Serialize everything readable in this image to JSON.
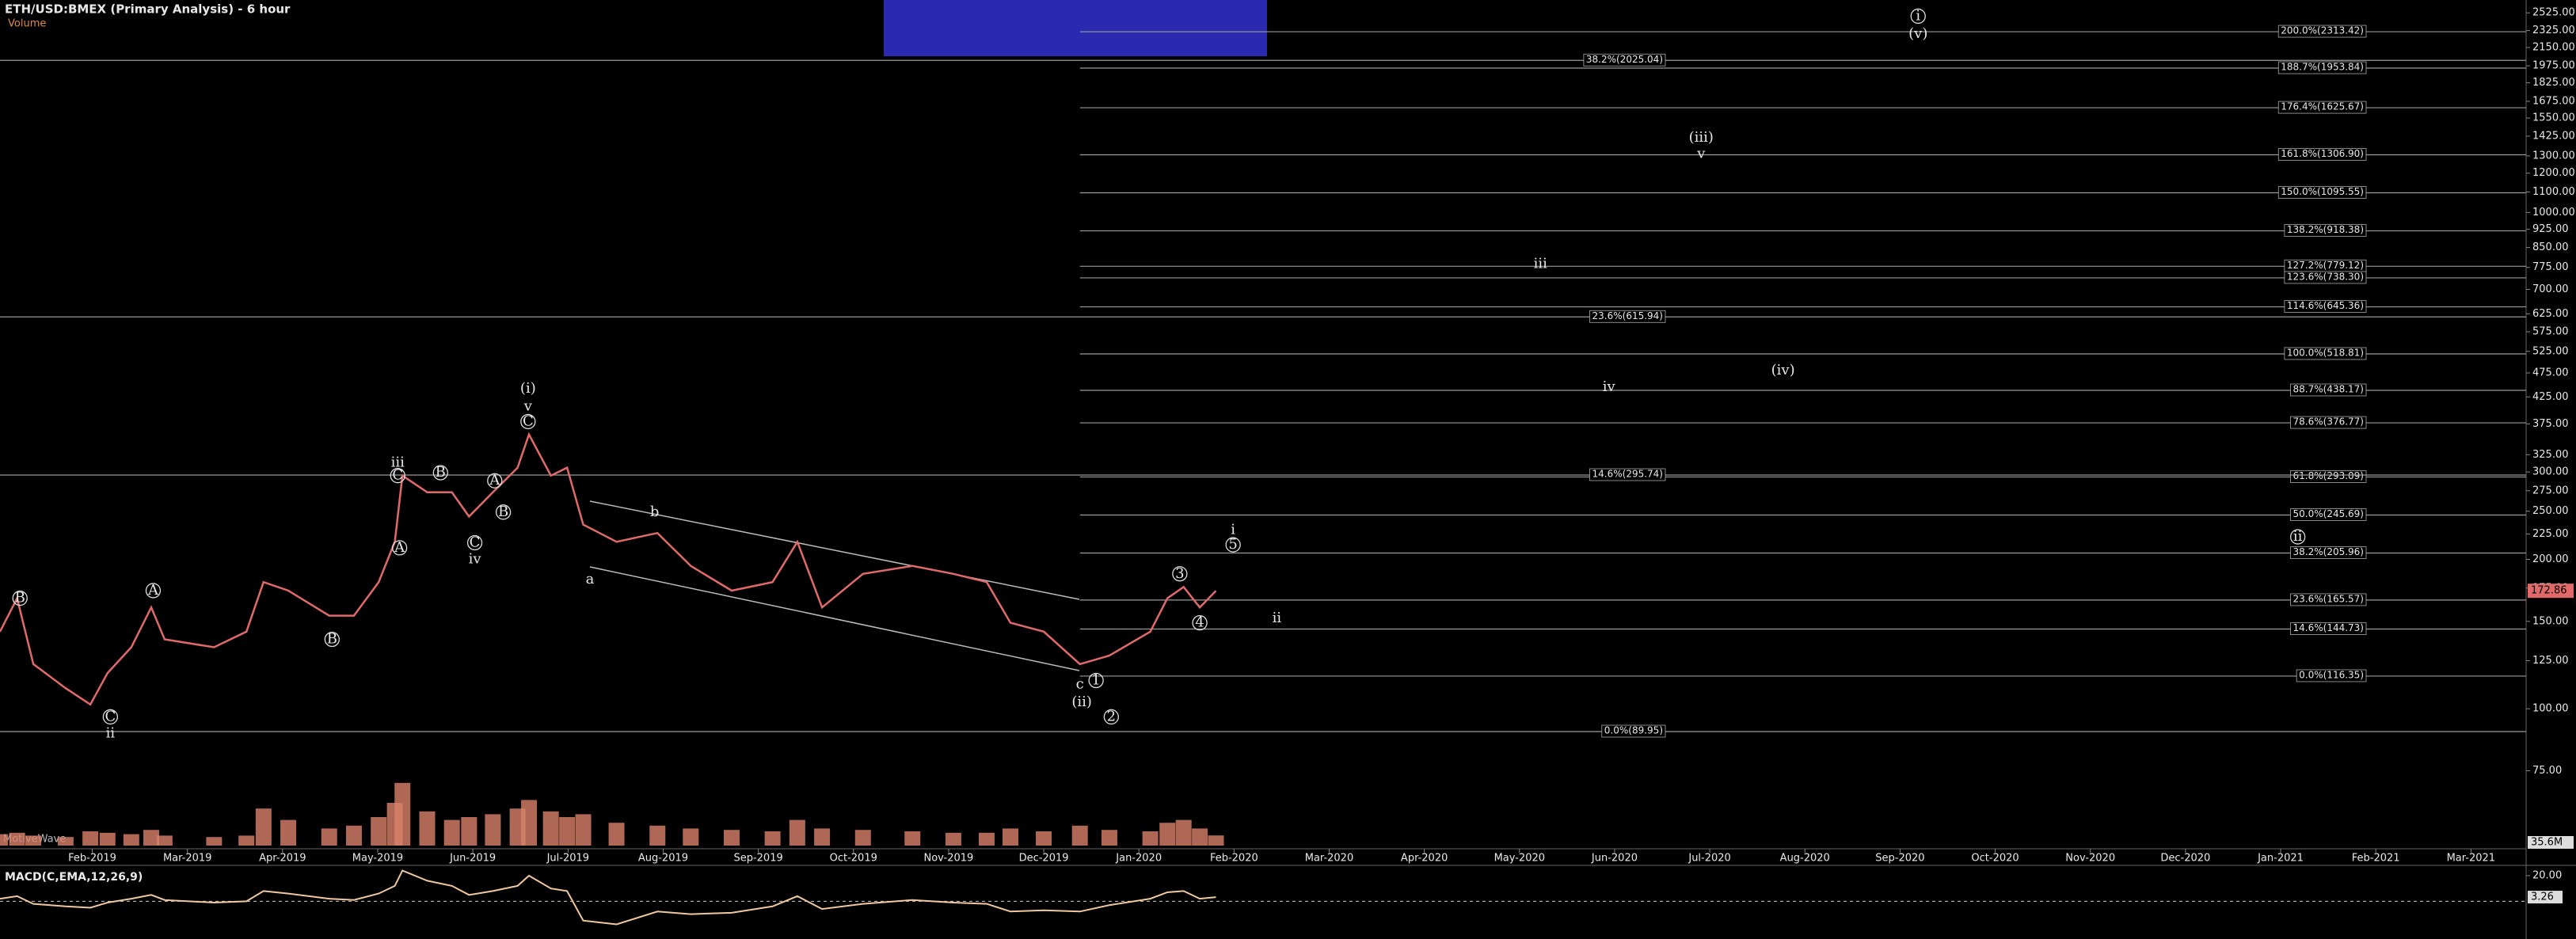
{
  "chart_data": {
    "type": "line",
    "title": "ETH/USD:BMEX (Primary Analysis) - 6 hour",
    "volume_title": "Volume",
    "watermark": "MotiveWave",
    "log_scale": true,
    "xlim": [
      0.03,
      26.58
    ],
    "ylim": [
      53,
      2680
    ],
    "xticks": [
      {
        "value": 1,
        "label": "Feb-2019"
      },
      {
        "value": 2,
        "label": "Mar-2019"
      },
      {
        "value": 3,
        "label": "Apr-2019"
      },
      {
        "value": 4,
        "label": "May-2019"
      },
      {
        "value": 5,
        "label": "Jun-2019"
      },
      {
        "value": 6,
        "label": "Jul-2019"
      },
      {
        "value": 7,
        "label": "Aug-2019"
      },
      {
        "value": 8,
        "label": "Sep-2019"
      },
      {
        "value": 9,
        "label": "Oct-2019"
      },
      {
        "value": 10,
        "label": "Nov-2019"
      },
      {
        "value": 11,
        "label": "Dec-2019"
      },
      {
        "value": 12,
        "label": "Jan-2020"
      },
      {
        "value": 13,
        "label": "Feb-2020"
      },
      {
        "value": 14,
        "label": "Mar-2020"
      },
      {
        "value": 15,
        "label": "Apr-2020"
      },
      {
        "value": 16,
        "label": "May-2020"
      },
      {
        "value": 17,
        "label": "Jun-2020"
      },
      {
        "value": 18,
        "label": "Jul-2020"
      },
      {
        "value": 19,
        "label": "Aug-2020"
      },
      {
        "value": 20,
        "label": "Sep-2020"
      },
      {
        "value": 21,
        "label": "Oct-2020"
      },
      {
        "value": 22,
        "label": "Nov-2020"
      },
      {
        "value": 23,
        "label": "Dec-2020"
      },
      {
        "value": 24,
        "label": "Jan-2021"
      },
      {
        "value": 25,
        "label": "Feb-2021"
      },
      {
        "value": 26,
        "label": "Mar-2021"
      }
    ],
    "yticks": [
      {
        "value": 2525,
        "label": "2525.00"
      },
      {
        "value": 2325,
        "label": "2325.00"
      },
      {
        "value": 2150,
        "label": "2150.00"
      },
      {
        "value": 1975,
        "label": "1975.00"
      },
      {
        "value": 1825,
        "label": "1825.00"
      },
      {
        "value": 1675,
        "label": "1675.00"
      },
      {
        "value": 1550,
        "label": "1550.00"
      },
      {
        "value": 1425,
        "label": "1425.00"
      },
      {
        "value": 1300,
        "label": "1300.00"
      },
      {
        "value": 1200,
        "label": "1200.00"
      },
      {
        "value": 1100,
        "label": "1100.00"
      },
      {
        "value": 1000,
        "label": "1000.00"
      },
      {
        "value": 925,
        "label": "925.00"
      },
      {
        "value": 850,
        "label": "850.00"
      },
      {
        "value": 775,
        "label": "775.00"
      },
      {
        "value": 700,
        "label": "700.00"
      },
      {
        "value": 625,
        "label": "625.00"
      },
      {
        "value": 575,
        "label": "575.00"
      },
      {
        "value": 525,
        "label": "525.00"
      },
      {
        "value": 475,
        "label": "475.00"
      },
      {
        "value": 425,
        "label": "425.00"
      },
      {
        "value": 375,
        "label": "375.00"
      },
      {
        "value": 325,
        "label": "325.00"
      },
      {
        "value": 300,
        "label": "300.00"
      },
      {
        "value": 275,
        "label": "275.00"
      },
      {
        "value": 250,
        "label": "250.00"
      },
      {
        "value": 225,
        "label": "225.00"
      },
      {
        "value": 200,
        "label": "200.00"
      },
      {
        "value": 175,
        "label": "175.00"
      },
      {
        "value": 150,
        "label": "150.00"
      },
      {
        "value": 125,
        "label": "125.00"
      },
      {
        "value": 100,
        "label": "100.00"
      },
      {
        "value": 75,
        "label": "75.00"
      }
    ],
    "x": [
      0.03,
      0.21,
      0.38,
      0.72,
      0.98,
      1.16,
      1.41,
      1.62,
      1.76,
      2.28,
      2.62,
      2.8,
      3.06,
      3.49,
      3.75,
      4.01,
      4.18,
      4.26,
      4.52,
      4.78,
      4.96,
      5.21,
      5.47,
      5.59,
      5.82,
      5.99,
      6.16,
      6.51,
      6.94,
      7.29,
      7.72,
      8.15,
      8.41,
      8.67,
      9.1,
      9.62,
      10.05,
      10.4,
      10.65,
      11.0,
      11.38,
      11.69,
      12.12,
      12.3,
      12.47,
      12.64,
      12.81
    ],
    "series": [
      {
        "name": "ETH/USD",
        "color": "#e06a6a",
        "values": [
          143,
          167,
          123,
          110,
          102,
          118,
          133,
          160,
          138,
          133,
          143,
          180,
          173,
          154,
          154,
          180,
          217,
          295,
          273,
          273,
          244,
          273,
          306,
          357,
          295,
          306,
          235,
          217,
          226,
          194,
          173,
          180,
          217,
          160,
          187,
          194,
          187,
          180,
          149,
          143,
          123,
          128,
          143,
          167,
          176,
          160,
          172.86
        ]
      }
    ],
    "volume": {
      "color": "#d9826a",
      "ylim": [
        0,
        500
      ],
      "values": [
        40,
        45,
        35,
        30,
        50,
        45,
        40,
        55,
        35,
        30,
        35,
        130,
        90,
        60,
        70,
        100,
        150,
        220,
        120,
        90,
        100,
        110,
        130,
        160,
        120,
        100,
        110,
        80,
        70,
        60,
        55,
        50,
        90,
        60,
        55,
        50,
        45,
        45,
        60,
        50,
        70,
        55,
        50,
        80,
        90,
        60,
        35.6
      ],
      "value_labels": [
        null,
        null,
        null,
        null,
        null,
        null,
        null,
        null,
        null,
        null,
        null,
        null,
        null,
        null,
        null,
        null,
        null,
        null,
        null,
        null,
        null,
        null,
        null,
        null,
        null,
        null,
        null,
        null,
        null,
        null,
        null,
        null,
        null,
        null,
        null,
        null,
        null,
        null,
        null,
        null,
        null,
        null,
        null,
        null,
        null,
        null,
        "35.6M"
      ]
    },
    "macd": {
      "title": "MACD(C,EMA,12,26,9)",
      "color": "#f0c8a0",
      "ylim": [
        -22,
        28
      ],
      "yticks": [
        {
          "value": 20,
          "label": "20.00"
        }
      ],
      "values": [
        2,
        4,
        -2,
        -4,
        -5,
        -1,
        2,
        5,
        1,
        -1,
        0,
        8,
        6,
        2,
        1,
        6,
        12,
        24,
        16,
        12,
        5,
        8,
        12,
        20,
        10,
        8,
        -15,
        -18,
        -8,
        -10,
        -9,
        -4,
        4,
        -6,
        -2,
        1,
        -1,
        -2,
        -8,
        -7,
        -8,
        -3,
        2,
        7,
        8,
        2,
        3.26
      ]
    },
    "fib_groups": [
      {
        "start": 11.38,
        "levels": [
          {
            "label": "200.0%(2313.42)",
            "price": 2313.42
          },
          {
            "label": "188.7%(1953.84)",
            "price": 1953.84
          },
          {
            "label": "176.4%(1625.67)",
            "price": 1625.67
          },
          {
            "label": "161.8%(1306.90)",
            "price": 1306.9
          },
          {
            "label": "150.0%(1095.55)",
            "price": 1095.55
          },
          {
            "label": "138.2%(918.38)",
            "price": 918.38
          },
          {
            "label": "127.2%(779.12)",
            "price": 779.12
          },
          {
            "label": "123.6%(738.30)",
            "price": 738.3
          },
          {
            "label": "114.6%(645.36)",
            "price": 645.36
          },
          {
            "label": "100.0%(518.81)",
            "price": 518.81
          },
          {
            "label": "88.7%(438.17)",
            "price": 438.17
          },
          {
            "label": "78.6%(376.77)",
            "price": 376.77
          },
          {
            "label": "61.8%(293.09)",
            "price": 293.09
          },
          {
            "label": "50.0%(245.69)",
            "price": 245.69
          },
          {
            "label": "38.2%(205.96)",
            "price": 205.96
          },
          {
            "label": "23.6%(165.57)",
            "price": 165.57
          },
          {
            "label": "14.6%(144.73)",
            "price": 144.73
          },
          {
            "label": "0.0%(116.35)",
            "price": 116.35
          }
        ]
      },
      {
        "start": 0.03,
        "levels": [
          {
            "label": "38.2%(2025.04)",
            "price": 2025.04
          },
          {
            "label": "23.6%(615.94)",
            "price": 615.94
          },
          {
            "label": "14.6%(295.74)",
            "price": 295.74
          },
          {
            "label": "0.0%(89.95)",
            "price": 89.95
          }
        ]
      }
    ],
    "annotations": [
      {
        "text": "B",
        "x": 0.24,
        "price": 167,
        "circled": true
      },
      {
        "text": "C",
        "x": 1.19,
        "price": 96.3,
        "circled": true
      },
      {
        "text": "ii",
        "x": 1.19,
        "price": 89.2,
        "circled": false
      },
      {
        "text": "A",
        "x": 1.64,
        "price": 173,
        "circled": true
      },
      {
        "text": "B",
        "x": 3.52,
        "price": 138,
        "circled": true
      },
      {
        "text": "iii",
        "x": 4.21,
        "price": 313,
        "circled": false
      },
      {
        "text": "C",
        "x": 4.21,
        "price": 295,
        "circled": true
      },
      {
        "text": "A",
        "x": 4.23,
        "price": 211,
        "circled": true
      },
      {
        "text": "B",
        "x": 4.66,
        "price": 299,
        "circled": true
      },
      {
        "text": "C",
        "x": 5.02,
        "price": 216,
        "circled": true
      },
      {
        "text": "iv",
        "x": 5.02,
        "price": 200,
        "circled": false
      },
      {
        "text": "A",
        "x": 5.23,
        "price": 288,
        "circled": true
      },
      {
        "text": "B",
        "x": 5.32,
        "price": 249,
        "circled": true
      },
      {
        "text": "(i)",
        "x": 5.58,
        "price": 441,
        "circled": false
      },
      {
        "text": "v",
        "x": 5.58,
        "price": 406,
        "circled": false
      },
      {
        "text": "C",
        "x": 5.58,
        "price": 379,
        "circled": true
      },
      {
        "text": "a",
        "x": 6.23,
        "price": 182,
        "circled": false
      },
      {
        "text": "b",
        "x": 6.91,
        "price": 249,
        "circled": false
      },
      {
        "text": "c",
        "x": 11.38,
        "price": 112,
        "circled": false
      },
      {
        "text": "(ii)",
        "x": 11.4,
        "price": 103,
        "circled": false
      },
      {
        "text": "1",
        "x": 11.55,
        "price": 114,
        "circled": true
      },
      {
        "text": "2",
        "x": 11.71,
        "price": 96.3,
        "circled": true
      },
      {
        "text": "3",
        "x": 12.43,
        "price": 187,
        "circled": true
      },
      {
        "text": "4",
        "x": 12.64,
        "price": 149,
        "circled": true
      },
      {
        "text": "i",
        "x": 12.99,
        "price": 229,
        "circled": false
      },
      {
        "text": "5",
        "x": 12.99,
        "price": 214,
        "circled": true
      },
      {
        "text": "ii",
        "x": 13.45,
        "price": 152,
        "circled": false
      },
      {
        "text": "iii",
        "x": 16.22,
        "price": 787,
        "circled": false
      },
      {
        "text": "iv",
        "x": 16.94,
        "price": 445,
        "circled": false
      },
      {
        "text": "(iii)",
        "x": 17.91,
        "price": 1415,
        "circled": false
      },
      {
        "text": "v",
        "x": 17.91,
        "price": 1311,
        "circled": false
      },
      {
        "text": "(iv)",
        "x": 18.77,
        "price": 480,
        "circled": false
      },
      {
        "text": "(v)",
        "x": 20.19,
        "price": 2287,
        "circled": false
      },
      {
        "text": "i",
        "x": 20.19,
        "price": 2486,
        "circled": true
      },
      {
        "text": "ii",
        "x": 24.18,
        "price": 222,
        "circled": true
      }
    ]
  }
}
